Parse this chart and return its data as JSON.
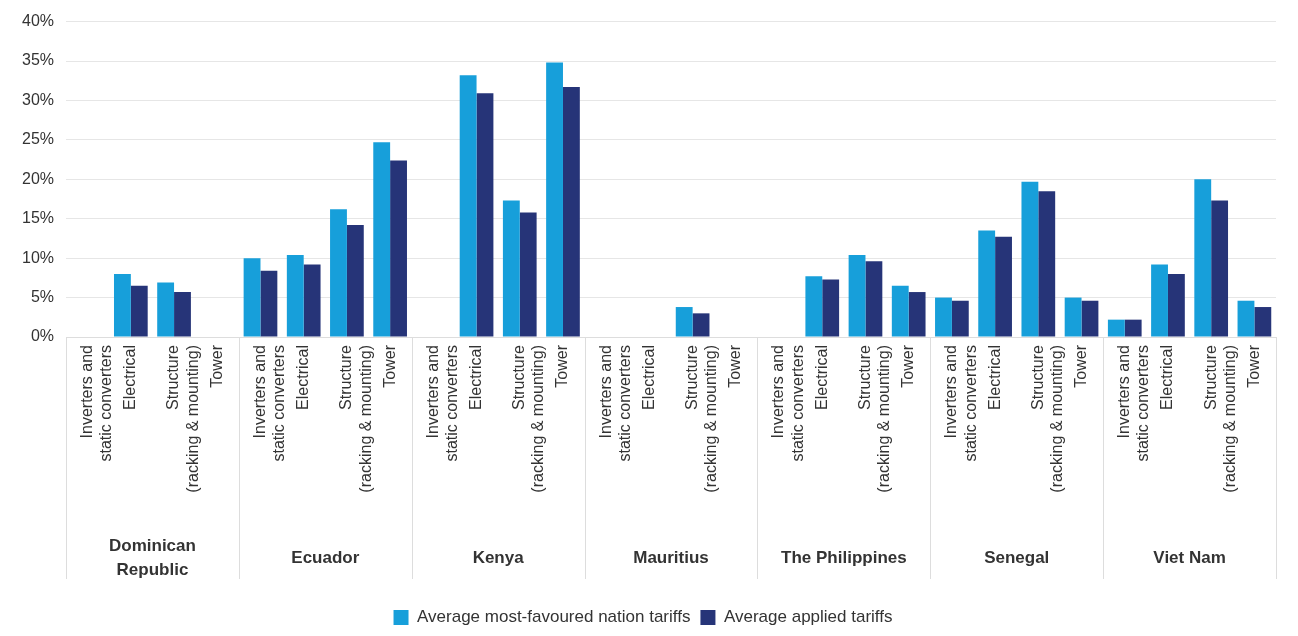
{
  "chart_data": {
    "type": "bar",
    "categories": [
      "Inverters and\nstatic converters",
      "Electrical",
      "Structure\n(racking & mounting)",
      "Tower",
      "Inverters and\nstatic converters",
      "Electrical",
      "Structure\n(racking & mounting)",
      "Tower",
      "Inverters and\nstatic converters",
      "Electrical",
      "Structure\n(racking & mounting)",
      "Tower",
      "Inverters and\nstatic converters",
      "Electrical",
      "Structure\n(racking & mounting)",
      "Tower",
      "Inverters and\nstatic converters",
      "Electrical",
      "Structure\n(racking & mounting)",
      "Tower",
      "Inverters and\nstatic converters",
      "Electrical",
      "Structure\n(racking & mounting)",
      "Tower",
      "Inverters and\nstatic converters",
      "Electrical",
      "Structure\n(racking & mounting)",
      "Tower"
    ],
    "series": [
      {
        "name": "Average most-favoured nation tariffs",
        "color": "#179fda",
        "values": [
          null,
          8.0,
          6.9,
          null,
          10.0,
          10.4,
          16.2,
          24.7,
          null,
          33.2,
          17.3,
          34.8,
          null,
          null,
          3.8,
          null,
          null,
          7.7,
          10.4,
          6.5,
          5.0,
          13.5,
          19.7,
          5.0,
          2.2,
          9.2,
          20.0,
          4.6
        ]
      },
      {
        "name": "Average applied tariffs",
        "color": "#263478",
        "values": [
          null,
          6.5,
          5.7,
          null,
          8.4,
          9.2,
          14.2,
          22.4,
          null,
          30.9,
          15.8,
          31.7,
          null,
          null,
          3.0,
          null,
          null,
          7.3,
          9.6,
          5.7,
          4.6,
          12.7,
          18.5,
          4.6,
          2.2,
          8.0,
          17.3,
          3.8
        ]
      }
    ],
    "annotations": [
      "Dominican Republic",
      "Ecuador",
      "Kenya",
      "Mauritius",
      "The Philippines",
      "Senegal",
      "Viet Nam"
    ],
    "ylim": [
      0,
      40
    ],
    "yticks": [
      {
        "value": 0,
        "label": "0%"
      },
      {
        "value": 5,
        "label": "5%"
      },
      {
        "value": 10,
        "label": "10%"
      },
      {
        "value": 15,
        "label": "15%"
      },
      {
        "value": 20,
        "label": "20%"
      },
      {
        "value": 25,
        "label": "25%"
      },
      {
        "value": 30,
        "label": "30%"
      },
      {
        "value": 35,
        "label": "35%"
      },
      {
        "value": 40,
        "label": "40%"
      }
    ],
    "grid": "y",
    "legend": "bottom"
  }
}
